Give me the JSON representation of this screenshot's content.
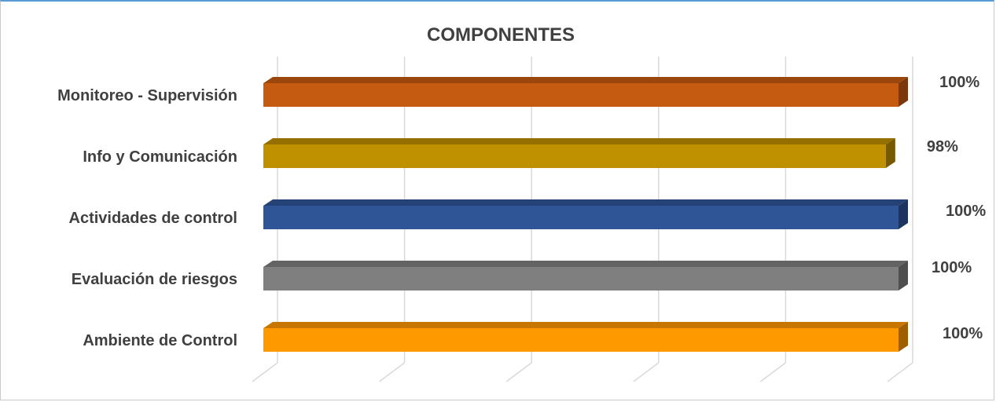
{
  "chart_data": {
    "type": "bar",
    "orientation": "horizontal",
    "style": "3d",
    "title": "COMPONENTES",
    "categories": [
      "Monitoreo - Supervisión",
      "Info y Comunicación",
      "Actividades de control",
      "Evaluación de riesgos",
      "Ambiente de Control"
    ],
    "values": [
      1.0,
      0.98,
      1.0,
      1.0,
      1.0
    ],
    "data_labels": [
      "100%",
      "98%",
      "100%",
      "100%",
      "100%"
    ],
    "colors": [
      "#c55a11",
      "#bf9000",
      "#2f5597",
      "#7f7f7f",
      "#ff9900"
    ],
    "xlim": [
      0,
      1
    ],
    "grid": true,
    "legend": "none"
  }
}
